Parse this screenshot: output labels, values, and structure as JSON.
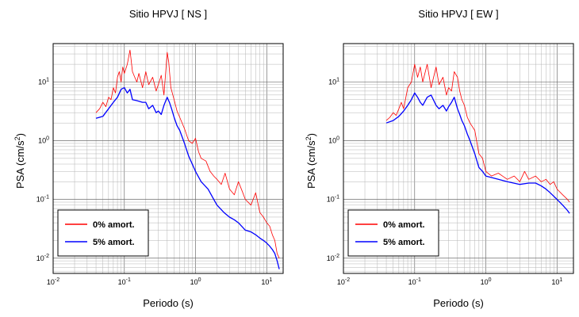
{
  "chart_data": [
    {
      "type": "line",
      "title": "Sitio HPVJ [ NS ]",
      "xlabel": "Periodo (s)",
      "ylabel": "PSA (cm/s2)",
      "x_scale": "log",
      "y_scale": "log",
      "xlim": [
        0.01,
        17
      ],
      "ylim": [
        0.0055,
        45
      ],
      "grid": true,
      "legend_position": "bottom-left",
      "x_ticks": [
        {
          "value": 0.01,
          "base": "10",
          "exp": "-2"
        },
        {
          "value": 0.1,
          "base": "10",
          "exp": "-1"
        },
        {
          "value": 1,
          "base": "10",
          "exp": "0"
        },
        {
          "value": 10,
          "base": "10",
          "exp": "1"
        }
      ],
      "y_ticks": [
        {
          "value": 0.01,
          "base": "10",
          "exp": "-2"
        },
        {
          "value": 0.1,
          "base": "10",
          "exp": "-1"
        },
        {
          "value": 1,
          "base": "10",
          "exp": "0"
        },
        {
          "value": 10,
          "base": "10",
          "exp": "1"
        }
      ],
      "series": [
        {
          "name": "0% amort.",
          "color": "#ff0000",
          "x": [
            0.04,
            0.045,
            0.05,
            0.055,
            0.06,
            0.065,
            0.07,
            0.075,
            0.08,
            0.085,
            0.09,
            0.095,
            0.1,
            0.11,
            0.12,
            0.13,
            0.14,
            0.15,
            0.16,
            0.18,
            0.2,
            0.22,
            0.25,
            0.28,
            0.3,
            0.33,
            0.36,
            0.4,
            0.42,
            0.45,
            0.5,
            0.55,
            0.6,
            0.7,
            0.8,
            0.9,
            1.0,
            1.1,
            1.2,
            1.4,
            1.6,
            1.8,
            2.0,
            2.3,
            2.6,
            3.0,
            3.5,
            4.0,
            4.5,
            5.0,
            6.0,
            7.0,
            8.0,
            9.0,
            10.0,
            11.0,
            12.0,
            13.0,
            14.0,
            15.0
          ],
          "y": [
            3.0,
            3.5,
            4.5,
            3.8,
            5.5,
            5.0,
            8.0,
            6.5,
            12.0,
            15.0,
            10.0,
            18.0,
            14.0,
            20.0,
            35.0,
            15.0,
            12.0,
            10.0,
            14.0,
            8.0,
            15.0,
            9.0,
            12.0,
            7.0,
            9.0,
            13.0,
            6.0,
            32.0,
            22.0,
            8.0,
            5.0,
            3.2,
            2.5,
            1.6,
            1.0,
            0.9,
            1.1,
            0.65,
            0.5,
            0.45,
            0.3,
            0.25,
            0.22,
            0.18,
            0.28,
            0.15,
            0.12,
            0.2,
            0.14,
            0.1,
            0.08,
            0.13,
            0.06,
            0.05,
            0.04,
            0.035,
            0.025,
            0.02,
            0.012,
            0.01
          ]
        },
        {
          "name": "5% amort.",
          "color": "#0000ff",
          "x": [
            0.04,
            0.05,
            0.06,
            0.07,
            0.08,
            0.09,
            0.1,
            0.11,
            0.12,
            0.13,
            0.15,
            0.18,
            0.2,
            0.22,
            0.25,
            0.28,
            0.3,
            0.33,
            0.36,
            0.4,
            0.43,
            0.46,
            0.5,
            0.55,
            0.6,
            0.7,
            0.8,
            0.9,
            1.0,
            1.2,
            1.5,
            1.8,
            2.0,
            2.5,
            3.0,
            3.5,
            4.0,
            5.0,
            6.0,
            7.0,
            8.0,
            9.0,
            10.0,
            11.0,
            12.0,
            13.0,
            14.0,
            15.0
          ],
          "y": [
            2.4,
            2.6,
            3.5,
            4.5,
            5.5,
            7.5,
            8.0,
            6.5,
            7.5,
            5.0,
            4.8,
            4.5,
            4.5,
            3.5,
            4.0,
            3.0,
            3.2,
            2.8,
            4.0,
            5.5,
            4.5,
            3.5,
            2.5,
            1.8,
            1.5,
            0.9,
            0.55,
            0.4,
            0.3,
            0.2,
            0.15,
            0.1,
            0.08,
            0.06,
            0.05,
            0.045,
            0.04,
            0.03,
            0.028,
            0.025,
            0.022,
            0.02,
            0.018,
            0.016,
            0.014,
            0.012,
            0.009,
            0.0065
          ]
        }
      ]
    },
    {
      "type": "line",
      "title": "Sitio HPVJ [ EW ]",
      "xlabel": "Periodo (s)",
      "ylabel": "PSA (cm/s2)",
      "x_scale": "log",
      "y_scale": "log",
      "xlim": [
        0.01,
        17
      ],
      "ylim": [
        0.0055,
        45
      ],
      "grid": true,
      "legend_position": "bottom-left",
      "x_ticks": [
        {
          "value": 0.01,
          "base": "10",
          "exp": "-2"
        },
        {
          "value": 0.1,
          "base": "10",
          "exp": "-1"
        },
        {
          "value": 1,
          "base": "10",
          "exp": "0"
        },
        {
          "value": 10,
          "base": "10",
          "exp": "1"
        }
      ],
      "y_ticks": [
        {
          "value": 0.01,
          "base": "10",
          "exp": "-2"
        },
        {
          "value": 0.1,
          "base": "10",
          "exp": "-1"
        },
        {
          "value": 1,
          "base": "10",
          "exp": "0"
        },
        {
          "value": 10,
          "base": "10",
          "exp": "1"
        }
      ],
      "series": [
        {
          "name": "0% amort.",
          "color": "#ff0000",
          "x": [
            0.04,
            0.045,
            0.05,
            0.055,
            0.06,
            0.065,
            0.07,
            0.08,
            0.09,
            0.1,
            0.11,
            0.12,
            0.13,
            0.15,
            0.17,
            0.2,
            0.22,
            0.25,
            0.28,
            0.3,
            0.33,
            0.36,
            0.4,
            0.43,
            0.46,
            0.5,
            0.55,
            0.6,
            0.7,
            0.8,
            0.9,
            1.0,
            1.2,
            1.5,
            2.0,
            2.5,
            3.0,
            3.5,
            4.0,
            5.0,
            6.0,
            7.0,
            8.0,
            9.0,
            10.0,
            12.0,
            14.0,
            15.0
          ],
          "y": [
            2.2,
            2.5,
            3.0,
            2.7,
            3.5,
            4.5,
            3.5,
            8.0,
            10.0,
            20.0,
            12.0,
            18.0,
            10.0,
            20.0,
            8.0,
            18.0,
            9.0,
            12.0,
            6.0,
            8.0,
            7.0,
            15.0,
            12.0,
            7.0,
            5.0,
            4.0,
            2.5,
            2.0,
            1.5,
            0.6,
            0.5,
            0.3,
            0.25,
            0.28,
            0.22,
            0.25,
            0.2,
            0.3,
            0.22,
            0.25,
            0.2,
            0.22,
            0.18,
            0.2,
            0.15,
            0.12,
            0.1,
            0.09
          ]
        },
        {
          "name": "5% amort.",
          "color": "#0000ff",
          "x": [
            0.04,
            0.05,
            0.06,
            0.07,
            0.08,
            0.09,
            0.1,
            0.11,
            0.12,
            0.13,
            0.15,
            0.17,
            0.2,
            0.22,
            0.25,
            0.28,
            0.3,
            0.33,
            0.36,
            0.4,
            0.43,
            0.46,
            0.5,
            0.55,
            0.6,
            0.7,
            0.8,
            0.9,
            1.0,
            1.5,
            2.0,
            3.0,
            4.0,
            5.0,
            6.0,
            7.0,
            8.0,
            10.0,
            12.0,
            14.0,
            15.0
          ],
          "y": [
            2.0,
            2.2,
            2.6,
            3.2,
            4.0,
            5.0,
            6.5,
            5.5,
            4.5,
            4.0,
            5.5,
            6.0,
            4.0,
            3.5,
            4.0,
            3.2,
            3.8,
            4.5,
            5.5,
            3.5,
            2.8,
            2.2,
            1.8,
            1.3,
            1.0,
            0.6,
            0.35,
            0.3,
            0.25,
            0.22,
            0.2,
            0.18,
            0.19,
            0.19,
            0.17,
            0.15,
            0.13,
            0.1,
            0.08,
            0.065,
            0.058
          ]
        }
      ]
    }
  ]
}
